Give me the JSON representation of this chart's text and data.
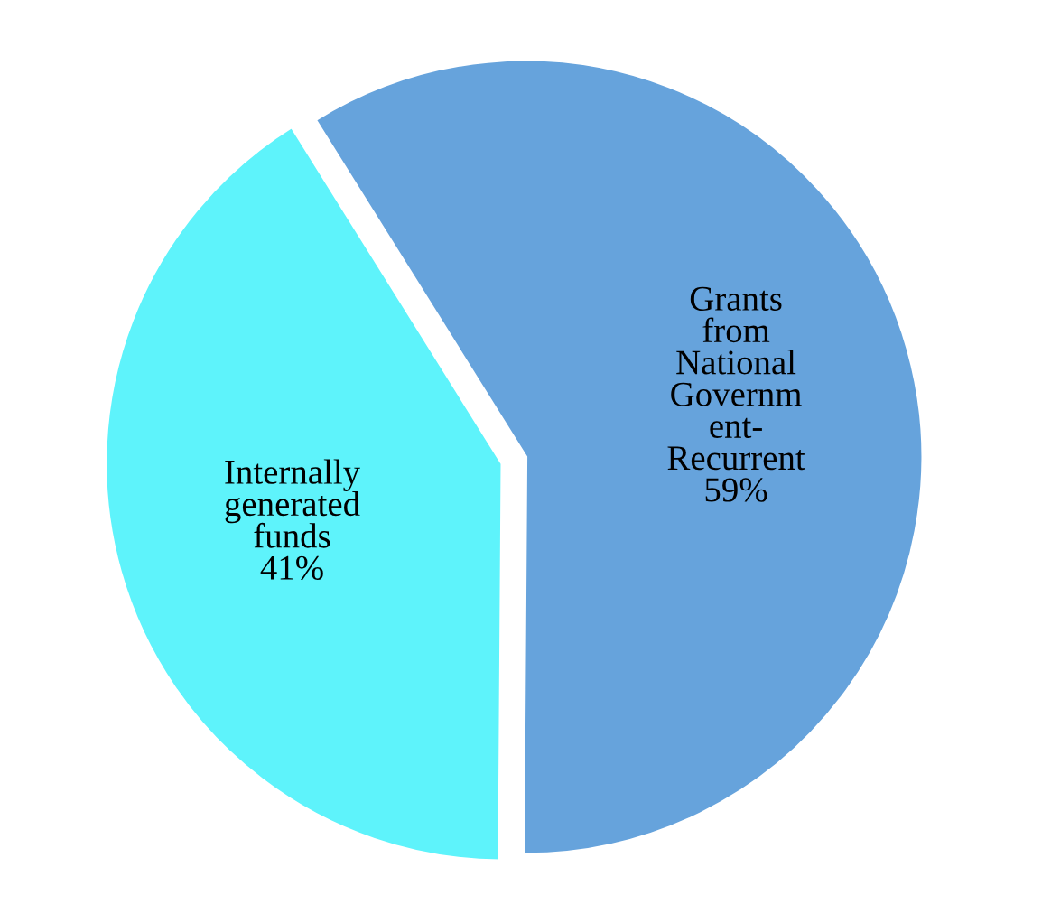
{
  "chart_data": {
    "type": "pie",
    "categories": [
      "Grants\nfrom\nNational\nGovernm\nent-\nRecurrent",
      "Internally\ngenerated\nfunds"
    ],
    "values": [
      59,
      41
    ],
    "colors": [
      "#66a3dc",
      "#5ef3fb"
    ],
    "value_labels": [
      "59%",
      "41%"
    ],
    "legend": false
  }
}
